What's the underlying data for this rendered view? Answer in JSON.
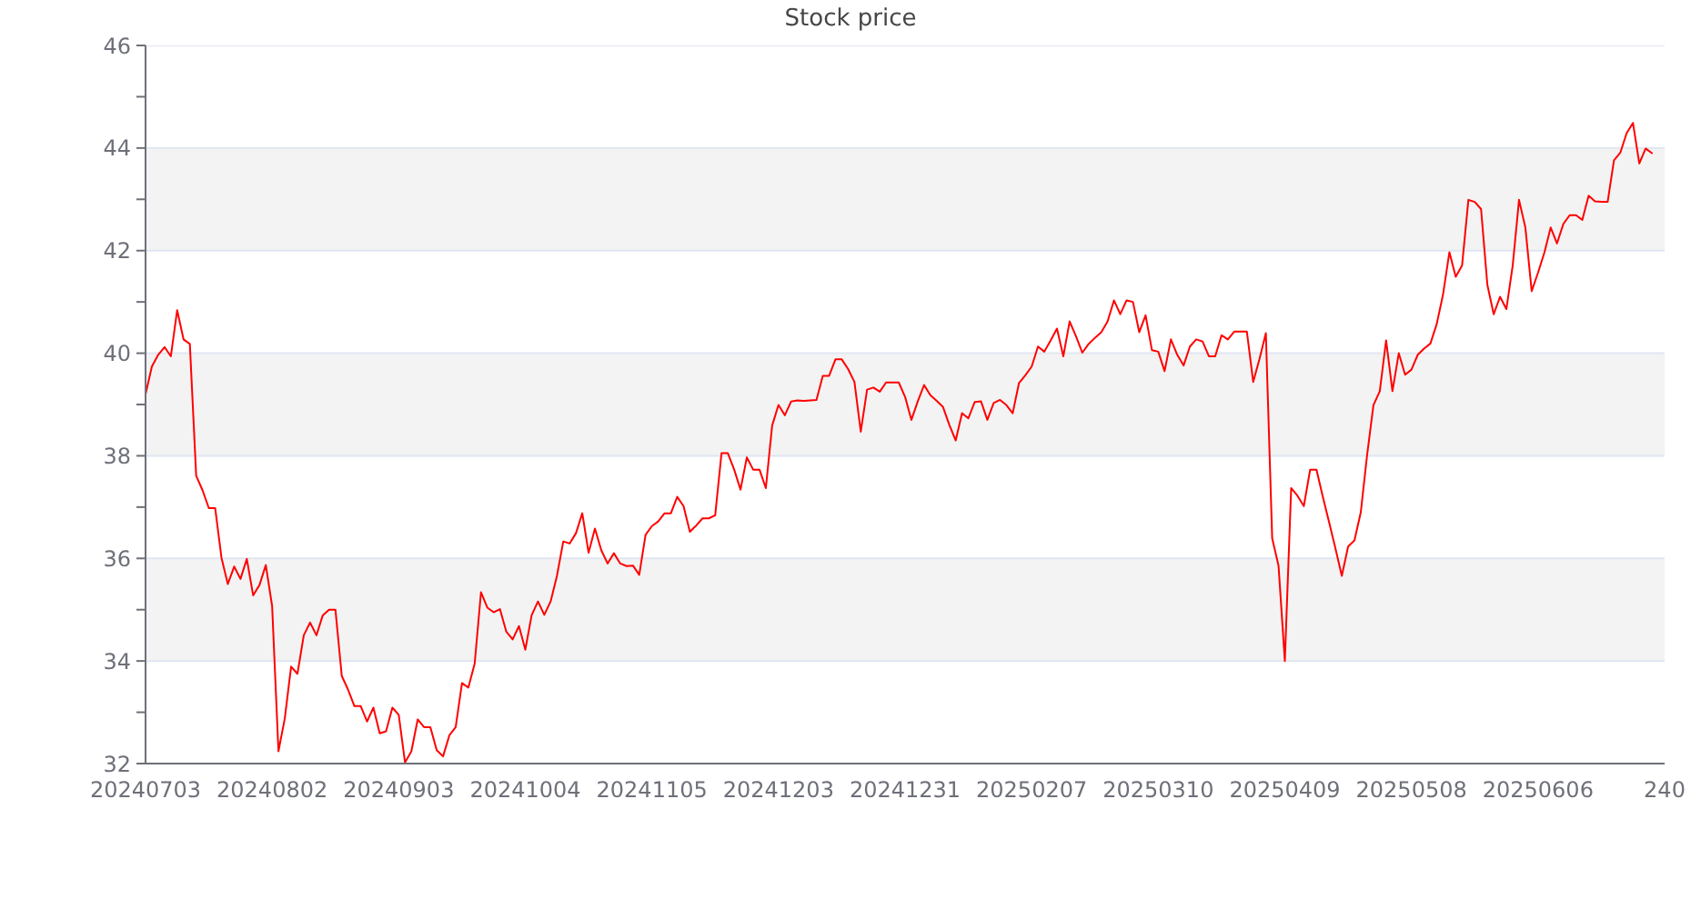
{
  "chart_data": {
    "type": "line",
    "title": "Stock price",
    "categories": [
      "20240703",
      null,
      null,
      null,
      null,
      null,
      null,
      null,
      null,
      null,
      null,
      null,
      null,
      null,
      null,
      null,
      null,
      null,
      null,
      null,
      "20240802",
      null,
      null,
      null,
      null,
      null,
      null,
      null,
      null,
      null,
      null,
      null,
      null,
      null,
      null,
      null,
      null,
      null,
      null,
      null,
      "20240903",
      null,
      null,
      null,
      null,
      null,
      null,
      null,
      null,
      null,
      null,
      null,
      null,
      null,
      null,
      null,
      null,
      null,
      null,
      null,
      "20241004",
      null,
      null,
      null,
      null,
      null,
      null,
      null,
      null,
      null,
      null,
      null,
      null,
      null,
      null,
      null,
      null,
      null,
      null,
      null,
      "20241105",
      null,
      null,
      null,
      null,
      null,
      null,
      null,
      null,
      null,
      null,
      null,
      null,
      null,
      null,
      null,
      null,
      null,
      null,
      null,
      "20241203",
      null,
      null,
      null,
      null,
      null,
      null,
      null,
      null,
      null,
      null,
      null,
      null,
      null,
      null,
      null,
      null,
      null,
      null,
      null,
      "20241231",
      null,
      null,
      null,
      null,
      null,
      null,
      null,
      null,
      null,
      null,
      null,
      null,
      null,
      null,
      null,
      null,
      null,
      null,
      null,
      "20250207",
      null,
      null,
      null,
      null,
      null,
      null,
      null,
      null,
      null,
      null,
      null,
      null,
      null,
      null,
      null,
      null,
      null,
      null,
      null,
      "20250310",
      null,
      null,
      null,
      null,
      null,
      null,
      null,
      null,
      null,
      null,
      null,
      null,
      null,
      null,
      null,
      null,
      null,
      null,
      null,
      "20250409",
      null,
      null,
      null,
      null,
      null,
      null,
      null,
      null,
      null,
      null,
      null,
      null,
      null,
      null,
      null,
      null,
      null,
      null,
      null,
      "20250508",
      null,
      null,
      null,
      null,
      null,
      null,
      null,
      null,
      null,
      null,
      null,
      null,
      null,
      null,
      null,
      null,
      null,
      null,
      null,
      "20250606",
      null,
      null,
      null,
      null,
      null,
      null,
      null,
      null,
      null,
      null,
      null,
      null,
      null,
      null,
      null,
      null,
      null,
      null,
      null,
      "240"
    ],
    "values": [
      39.2,
      39.74,
      39.97,
      40.12,
      39.94,
      40.84,
      40.27,
      40.18,
      37.61,
      37.33,
      36.98,
      36.98,
      36.01,
      35.5,
      35.84,
      35.6,
      35.99,
      35.28,
      35.48,
      35.87,
      35.07,
      32.24,
      32.88,
      33.89,
      33.75,
      34.5,
      34.75,
      34.5,
      34.89,
      35.0,
      35.0,
      33.71,
      33.44,
      33.12,
      33.12,
      32.82,
      33.09,
      32.59,
      32.63,
      33.09,
      32.95,
      32.02,
      32.24,
      32.86,
      32.71,
      32.71,
      32.26,
      32.14,
      32.55,
      32.71,
      33.57,
      33.48,
      33.95,
      35.34,
      35.04,
      34.95,
      35.01,
      34.57,
      34.42,
      34.68,
      34.22,
      34.89,
      35.16,
      34.9,
      35.16,
      35.66,
      36.33,
      36.29,
      36.49,
      36.88,
      36.11,
      36.58,
      36.16,
      35.9,
      36.1,
      35.9,
      35.85,
      35.86,
      35.68,
      36.46,
      36.63,
      36.72,
      36.88,
      36.88,
      37.2,
      37.02,
      36.52,
      36.64,
      36.78,
      36.78,
      36.84,
      38.05,
      38.05,
      37.73,
      37.34,
      37.97,
      37.73,
      37.73,
      37.37,
      38.59,
      38.99,
      38.79,
      39.06,
      39.08,
      39.07,
      39.08,
      39.09,
      39.56,
      39.56,
      39.88,
      39.88,
      39.69,
      39.44,
      38.47,
      39.29,
      39.33,
      39.25,
      39.43,
      39.43,
      39.43,
      39.15,
      38.7,
      39.06,
      39.38,
      39.18,
      39.07,
      38.95,
      38.6,
      38.3,
      38.83,
      38.73,
      39.05,
      39.06,
      38.7,
      39.03,
      39.09,
      38.99,
      38.83,
      39.42,
      39.57,
      39.74,
      40.13,
      40.03,
      40.25,
      40.48,
      39.94,
      40.62,
      40.33,
      40.01,
      40.18,
      40.3,
      40.41,
      40.62,
      41.03,
      40.76,
      41.03,
      41.0,
      40.41,
      40.74,
      40.06,
      40.03,
      39.65,
      40.27,
      39.97,
      39.76,
      40.13,
      40.27,
      40.23,
      39.94,
      39.94,
      40.35,
      40.27,
      40.42,
      40.42,
      40.42,
      39.44,
      39.89,
      40.39,
      36.39,
      35.86,
      34.0,
      37.37,
      37.22,
      37.02,
      37.73,
      37.73,
      37.2,
      36.7,
      36.19,
      35.66,
      36.23,
      36.35,
      36.9,
      38.02,
      38.99,
      39.26,
      40.25,
      39.26,
      40.0,
      39.58,
      39.68,
      39.97,
      40.09,
      40.19,
      40.57,
      41.15,
      41.97,
      41.49,
      41.71,
      42.99,
      42.95,
      42.81,
      41.33,
      40.76,
      41.1,
      40.86,
      41.71,
      42.99,
      42.45,
      41.21,
      41.57,
      41.96,
      42.45,
      42.14,
      42.52,
      42.69,
      42.69,
      42.6,
      43.07,
      42.96,
      42.95,
      42.95,
      43.76,
      43.91,
      44.29,
      44.49,
      43.7,
      43.99,
      43.9,
      null,
      null
    ],
    "color": "#ff0000",
    "ylim": [
      32,
      46
    ],
    "yticks": [
      32,
      {
        "value": 33,
        "label": null
      },
      34,
      {
        "value": 35,
        "label": null
      },
      36,
      {
        "value": 37,
        "label": null
      },
      38,
      {
        "value": 39,
        "label": null
      },
      40,
      {
        "value": 41,
        "label": null
      },
      42,
      {
        "value": 43,
        "label": null
      },
      44,
      {
        "value": 45,
        "label": null
      },
      46
    ],
    "grid": "y",
    "bands": [
      {
        "axis": "y",
        "from": 34,
        "to": 36,
        "color": "#f3f3f3"
      },
      {
        "axis": "y",
        "from": 38,
        "to": 40,
        "color": "#f3f3f3"
      },
      {
        "axis": "y",
        "from": 42,
        "to": 44,
        "color": "#f3f3f3"
      }
    ],
    "marker": "none",
    "line_style": "solid"
  }
}
